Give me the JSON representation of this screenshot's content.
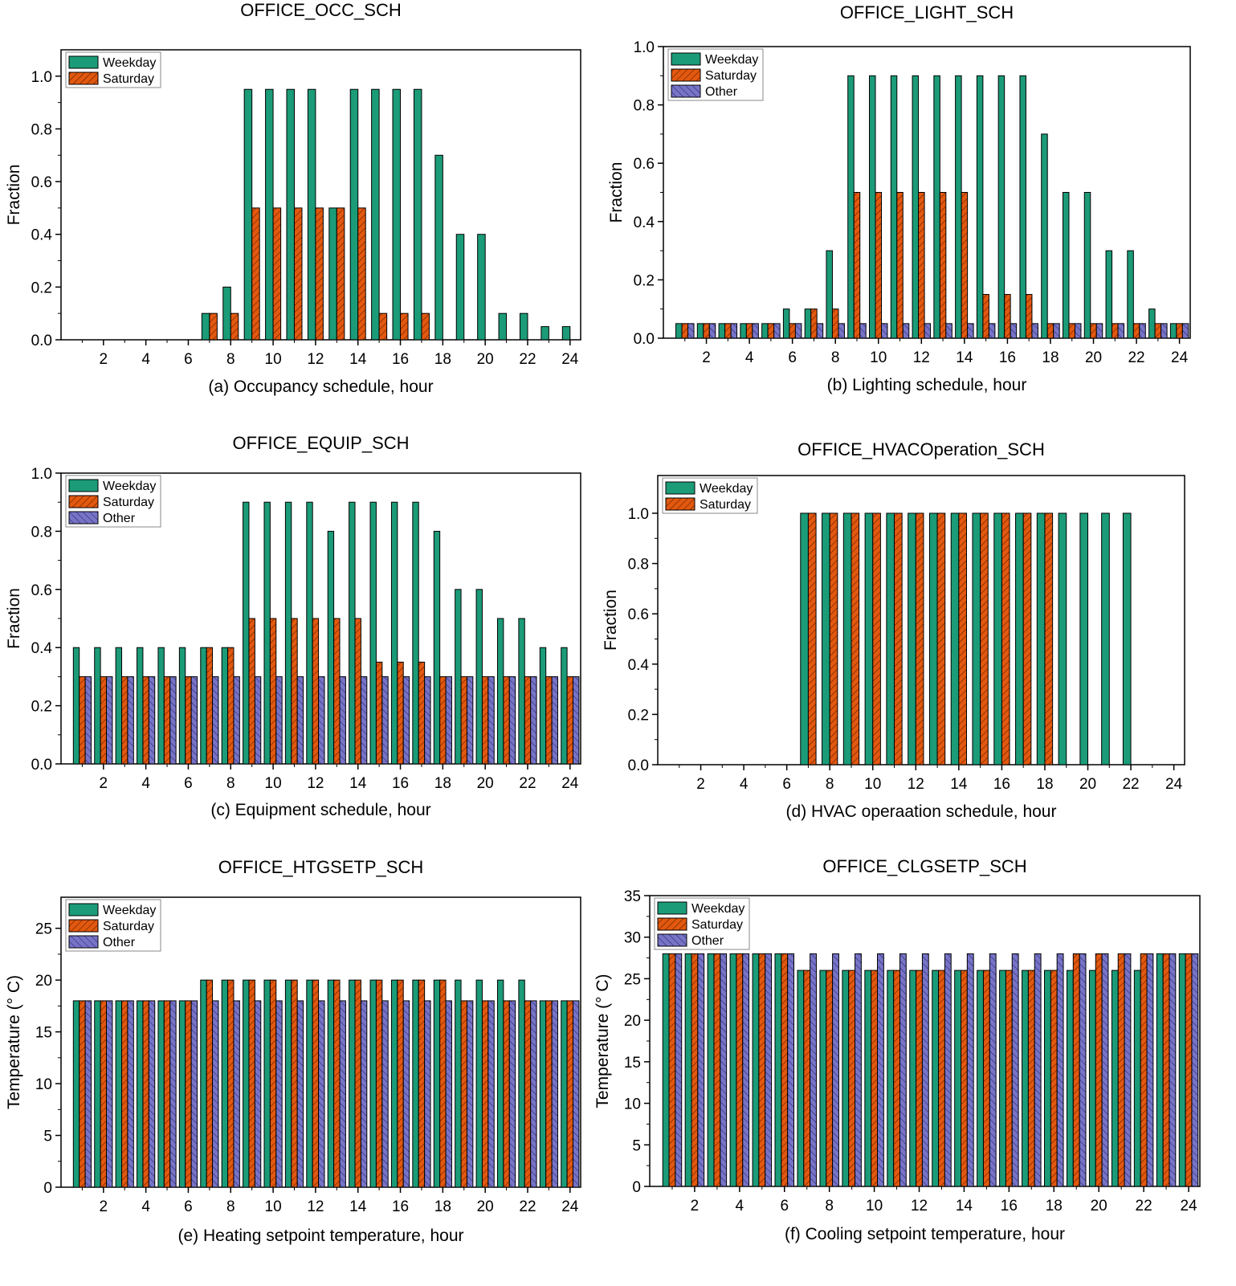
{
  "colors": {
    "weekday": "#1b9b77",
    "saturday": "#e3580f",
    "other": "#7774c7",
    "border": "#000000"
  },
  "chart_data": [
    {
      "id": "a",
      "type": "bar",
      "title": "OFFICE_OCC_SCH",
      "xlabel": "(a) Occupancy schedule, hour",
      "ylabel": "Fraction",
      "ylim": [
        0,
        1.1
      ],
      "yticks": [
        "0.0",
        "0.2",
        "0.4",
        "0.6",
        "0.8",
        "1.0"
      ],
      "ytick_values": [
        0,
        0.2,
        0.4,
        0.6,
        0.8,
        1.0
      ],
      "categories": [
        1,
        2,
        3,
        4,
        5,
        6,
        7,
        8,
        9,
        10,
        11,
        12,
        13,
        14,
        15,
        16,
        17,
        18,
        19,
        20,
        21,
        22,
        23,
        24
      ],
      "xticks": [
        "2",
        "4",
        "6",
        "8",
        "10",
        "12",
        "14",
        "16",
        "18",
        "20",
        "22",
        "24"
      ],
      "xtick_values": [
        2,
        4,
        6,
        8,
        10,
        12,
        14,
        16,
        18,
        20,
        22,
        24
      ],
      "legend": [
        "Weekday",
        "Saturday"
      ],
      "series": [
        {
          "name": "Weekday",
          "values": [
            0,
            0,
            0,
            0,
            0,
            0,
            0.1,
            0.2,
            0.95,
            0.95,
            0.95,
            0.95,
            0.5,
            0.95,
            0.95,
            0.95,
            0.95,
            0.7,
            0.4,
            0.4,
            0.1,
            0.1,
            0.05,
            0.05
          ]
        },
        {
          "name": "Saturday",
          "values": [
            0,
            0,
            0,
            0,
            0,
            0,
            0.1,
            0.1,
            0.5,
            0.5,
            0.5,
            0.5,
            0.5,
            0.5,
            0.1,
            0.1,
            0.1,
            0,
            0,
            0,
            0,
            0,
            0,
            0
          ]
        }
      ]
    },
    {
      "id": "b",
      "type": "bar",
      "title": "OFFICE_LIGHT_SCH",
      "xlabel": "(b) Lighting schedule, hour",
      "ylabel": "Fraction",
      "ylim": [
        0,
        1.0
      ],
      "yticks": [
        "0.0",
        "0.2",
        "0.4",
        "0.6",
        "0.8",
        "1.0"
      ],
      "ytick_values": [
        0,
        0.2,
        0.4,
        0.6,
        0.8,
        1.0
      ],
      "categories": [
        1,
        2,
        3,
        4,
        5,
        6,
        7,
        8,
        9,
        10,
        11,
        12,
        13,
        14,
        15,
        16,
        17,
        18,
        19,
        20,
        21,
        22,
        23,
        24
      ],
      "xticks": [
        "2",
        "4",
        "6",
        "8",
        "10",
        "12",
        "14",
        "16",
        "18",
        "20",
        "22",
        "24"
      ],
      "xtick_values": [
        2,
        4,
        6,
        8,
        10,
        12,
        14,
        16,
        18,
        20,
        22,
        24
      ],
      "legend": [
        "Weekday",
        "Saturday",
        "Other"
      ],
      "series": [
        {
          "name": "Weekday",
          "values": [
            0.05,
            0.05,
            0.05,
            0.05,
            0.05,
            0.1,
            0.1,
            0.3,
            0.9,
            0.9,
            0.9,
            0.9,
            0.9,
            0.9,
            0.9,
            0.9,
            0.9,
            0.7,
            0.5,
            0.5,
            0.3,
            0.3,
            0.1,
            0.05
          ]
        },
        {
          "name": "Saturday",
          "values": [
            0.05,
            0.05,
            0.05,
            0.05,
            0.05,
            0.05,
            0.1,
            0.1,
            0.5,
            0.5,
            0.5,
            0.5,
            0.5,
            0.5,
            0.15,
            0.15,
            0.15,
            0.05,
            0.05,
            0.05,
            0.05,
            0.05,
            0.05,
            0.05
          ]
        },
        {
          "name": "Other",
          "values": [
            0.05,
            0.05,
            0.05,
            0.05,
            0.05,
            0.05,
            0.05,
            0.05,
            0.05,
            0.05,
            0.05,
            0.05,
            0.05,
            0.05,
            0.05,
            0.05,
            0.05,
            0.05,
            0.05,
            0.05,
            0.05,
            0.05,
            0.05,
            0.05
          ]
        }
      ]
    },
    {
      "id": "c",
      "type": "bar",
      "title": "OFFICE_EQUIP_SCH",
      "xlabel": "(c) Equipment schedule, hour",
      "ylabel": "Fraction",
      "ylim": [
        0,
        1.0
      ],
      "yticks": [
        "0.0",
        "0.2",
        "0.4",
        "0.6",
        "0.8",
        "1.0"
      ],
      "ytick_values": [
        0,
        0.2,
        0.4,
        0.6,
        0.8,
        1.0
      ],
      "categories": [
        1,
        2,
        3,
        4,
        5,
        6,
        7,
        8,
        9,
        10,
        11,
        12,
        13,
        14,
        15,
        16,
        17,
        18,
        19,
        20,
        21,
        22,
        23,
        24
      ],
      "xticks": [
        "2",
        "4",
        "6",
        "8",
        "10",
        "12",
        "14",
        "16",
        "18",
        "20",
        "22",
        "24"
      ],
      "xtick_values": [
        2,
        4,
        6,
        8,
        10,
        12,
        14,
        16,
        18,
        20,
        22,
        24
      ],
      "legend": [
        "Weekday",
        "Saturday",
        "Other"
      ],
      "series": [
        {
          "name": "Weekday",
          "values": [
            0.4,
            0.4,
            0.4,
            0.4,
            0.4,
            0.4,
            0.4,
            0.4,
            0.9,
            0.9,
            0.9,
            0.9,
            0.8,
            0.9,
            0.9,
            0.9,
            0.9,
            0.8,
            0.6,
            0.6,
            0.5,
            0.5,
            0.4,
            0.4
          ]
        },
        {
          "name": "Saturday",
          "values": [
            0.3,
            0.3,
            0.3,
            0.3,
            0.3,
            0.3,
            0.4,
            0.4,
            0.5,
            0.5,
            0.5,
            0.5,
            0.5,
            0.5,
            0.35,
            0.35,
            0.35,
            0.3,
            0.3,
            0.3,
            0.3,
            0.3,
            0.3,
            0.3
          ]
        },
        {
          "name": "Other",
          "values": [
            0.3,
            0.3,
            0.3,
            0.3,
            0.3,
            0.3,
            0.3,
            0.3,
            0.3,
            0.3,
            0.3,
            0.3,
            0.3,
            0.3,
            0.3,
            0.3,
            0.3,
            0.3,
            0.3,
            0.3,
            0.3,
            0.3,
            0.3,
            0.3
          ]
        }
      ]
    },
    {
      "id": "d",
      "type": "bar",
      "title": "OFFICE_HVACOperation_SCH",
      "xlabel": "(d) HVAC operaation schedule, hour",
      "ylabel": "Fraction",
      "ylim": [
        0,
        1.15
      ],
      "yticks": [
        "0.0",
        "0.2",
        "0.4",
        "0.6",
        "0.8",
        "1.0"
      ],
      "ytick_values": [
        0,
        0.2,
        0.4,
        0.6,
        0.8,
        1.0
      ],
      "categories": [
        1,
        2,
        3,
        4,
        5,
        6,
        7,
        8,
        9,
        10,
        11,
        12,
        13,
        14,
        15,
        16,
        17,
        18,
        19,
        20,
        21,
        22,
        23,
        24
      ],
      "xticks": [
        "2",
        "4",
        "6",
        "8",
        "10",
        "12",
        "14",
        "16",
        "18",
        "20",
        "22",
        "24"
      ],
      "xtick_values": [
        2,
        4,
        6,
        8,
        10,
        12,
        14,
        16,
        18,
        20,
        22,
        24
      ],
      "legend": [
        "Weekday",
        "Saturday"
      ],
      "series": [
        {
          "name": "Weekday",
          "values": [
            0,
            0,
            0,
            0,
            0,
            0,
            1,
            1,
            1,
            1,
            1,
            1,
            1,
            1,
            1,
            1,
            1,
            1,
            1,
            1,
            1,
            1,
            0,
            0
          ]
        },
        {
          "name": "Saturday",
          "values": [
            0,
            0,
            0,
            0,
            0,
            0,
            1,
            1,
            1,
            1,
            1,
            1,
            1,
            1,
            1,
            1,
            1,
            1,
            0,
            0,
            0,
            0,
            0,
            0
          ]
        }
      ]
    },
    {
      "id": "e",
      "type": "bar",
      "title": "OFFICE_HTGSETP_SCH",
      "xlabel": "(e) Heating setpoint temperature, hour",
      "ylabel": "Temperature (° C)",
      "ylim": [
        0,
        28
      ],
      "yticks": [
        "0",
        "5",
        "10",
        "15",
        "20",
        "25"
      ],
      "ytick_values": [
        0,
        5,
        10,
        15,
        20,
        25
      ],
      "categories": [
        1,
        2,
        3,
        4,
        5,
        6,
        7,
        8,
        9,
        10,
        11,
        12,
        13,
        14,
        15,
        16,
        17,
        18,
        19,
        20,
        21,
        22,
        23,
        24
      ],
      "xticks": [
        "2",
        "4",
        "6",
        "8",
        "10",
        "12",
        "14",
        "16",
        "18",
        "20",
        "22",
        "24"
      ],
      "xtick_values": [
        2,
        4,
        6,
        8,
        10,
        12,
        14,
        16,
        18,
        20,
        22,
        24
      ],
      "legend": [
        "Weekday",
        "Saturday",
        "Other"
      ],
      "series": [
        {
          "name": "Weekday",
          "values": [
            18,
            18,
            18,
            18,
            18,
            18,
            20,
            20,
            20,
            20,
            20,
            20,
            20,
            20,
            20,
            20,
            20,
            20,
            20,
            20,
            20,
            20,
            18,
            18
          ]
        },
        {
          "name": "Saturday",
          "values": [
            18,
            18,
            18,
            18,
            18,
            18,
            20,
            20,
            20,
            20,
            20,
            20,
            20,
            20,
            20,
            20,
            20,
            20,
            18,
            18,
            18,
            18,
            18,
            18
          ]
        },
        {
          "name": "Other",
          "values": [
            18,
            18,
            18,
            18,
            18,
            18,
            18,
            18,
            18,
            18,
            18,
            18,
            18,
            18,
            18,
            18,
            18,
            18,
            18,
            18,
            18,
            18,
            18,
            18
          ]
        }
      ]
    },
    {
      "id": "f",
      "type": "bar",
      "title": "OFFICE_CLGSETP_SCH",
      "xlabel": "(f) Cooling setpoint temperature, hour",
      "ylabel": "Temperature (° C)",
      "ylim": [
        0,
        35
      ],
      "yticks": [
        "0",
        "5",
        "10",
        "15",
        "20",
        "25",
        "30",
        "35"
      ],
      "ytick_values": [
        0,
        5,
        10,
        15,
        20,
        25,
        30,
        35
      ],
      "categories": [
        1,
        2,
        3,
        4,
        5,
        6,
        7,
        8,
        9,
        10,
        11,
        12,
        13,
        14,
        15,
        16,
        17,
        18,
        19,
        20,
        21,
        22,
        23,
        24
      ],
      "xticks": [
        "2",
        "4",
        "6",
        "8",
        "10",
        "12",
        "14",
        "16",
        "18",
        "20",
        "22",
        "24"
      ],
      "xtick_values": [
        2,
        4,
        6,
        8,
        10,
        12,
        14,
        16,
        18,
        20,
        22,
        24
      ],
      "legend": [
        "Weekday",
        "Saturday",
        "Other"
      ],
      "series": [
        {
          "name": "Weekday",
          "values": [
            28,
            28,
            28,
            28,
            28,
            28,
            26,
            26,
            26,
            26,
            26,
            26,
            26,
            26,
            26,
            26,
            26,
            26,
            26,
            26,
            26,
            26,
            28,
            28
          ]
        },
        {
          "name": "Saturday",
          "values": [
            28,
            28,
            28,
            28,
            28,
            28,
            26,
            26,
            26,
            26,
            26,
            26,
            26,
            26,
            26,
            26,
            26,
            26,
            28,
            28,
            28,
            28,
            28,
            28
          ]
        },
        {
          "name": "Other",
          "values": [
            28,
            28,
            28,
            28,
            28,
            28,
            28,
            28,
            28,
            28,
            28,
            28,
            28,
            28,
            28,
            28,
            28,
            28,
            28,
            28,
            28,
            28,
            28,
            28
          ]
        }
      ]
    }
  ]
}
